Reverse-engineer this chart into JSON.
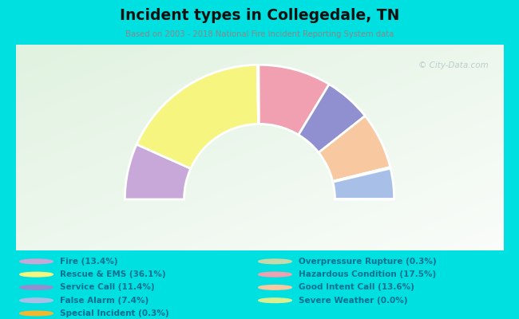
{
  "title": "Incident types in Collegedale, TN",
  "subtitle": "Based on 2003 - 2018 National Fire Incident Reporting System data",
  "watermark": "© City-Data.com",
  "bg_color": "#00e0e0",
  "chart_box_color": "#e8f0e4",
  "segments_ordered": [
    {
      "label": "Fire (13.4%)",
      "value": 13.4,
      "color": "#c8a8d8"
    },
    {
      "label": "Rescue & EMS (36.1%)",
      "value": 36.1,
      "color": "#f5f580"
    },
    {
      "label": "Special Incident (0.3%)",
      "value": 0.3,
      "color": "#f0b830"
    },
    {
      "label": "Hazardous Condition (17.5%)",
      "value": 17.5,
      "color": "#f0a0b0"
    },
    {
      "label": "Service Call (11.4%)",
      "value": 11.4,
      "color": "#9090d0"
    },
    {
      "label": "Good Intent Call (13.6%)",
      "value": 13.6,
      "color": "#f8c8a0"
    },
    {
      "label": "Overpressure Rupture (0.3%)",
      "value": 0.3,
      "color": "#c8d8a8"
    },
    {
      "label": "False Alarm (7.4%)",
      "value": 7.4,
      "color": "#a8c0e8"
    },
    {
      "label": "Severe Weather (0.0%)",
      "value": 0.001,
      "color": "#d8f090"
    }
  ],
  "legend_col1": [
    {
      "label": "Fire (13.4%)",
      "color": "#c8a8d8"
    },
    {
      "label": "Rescue & EMS (36.1%)",
      "color": "#f5f580"
    },
    {
      "label": "Service Call (11.4%)",
      "color": "#9090d0"
    },
    {
      "label": "False Alarm (7.4%)",
      "color": "#a8c0e8"
    },
    {
      "label": "Special Incident (0.3%)",
      "color": "#f0b830"
    }
  ],
  "legend_col2": [
    {
      "label": "Overpressure Rupture (0.3%)",
      "color": "#c8d8a8"
    },
    {
      "label": "Hazardous Condition (17.5%)",
      "color": "#f0a0b0"
    },
    {
      "label": "Good Intent Call (13.6%)",
      "color": "#f8c8a0"
    },
    {
      "label": "Severe Weather (0.0%)",
      "color": "#d8f090"
    }
  ],
  "legend_text_color": "#007090",
  "title_color": "#111111",
  "subtitle_color": "#888888",
  "outer_r": 1.0,
  "inner_r": 0.56,
  "edgecolor": "#ffffff",
  "edgewidth": 2.0
}
